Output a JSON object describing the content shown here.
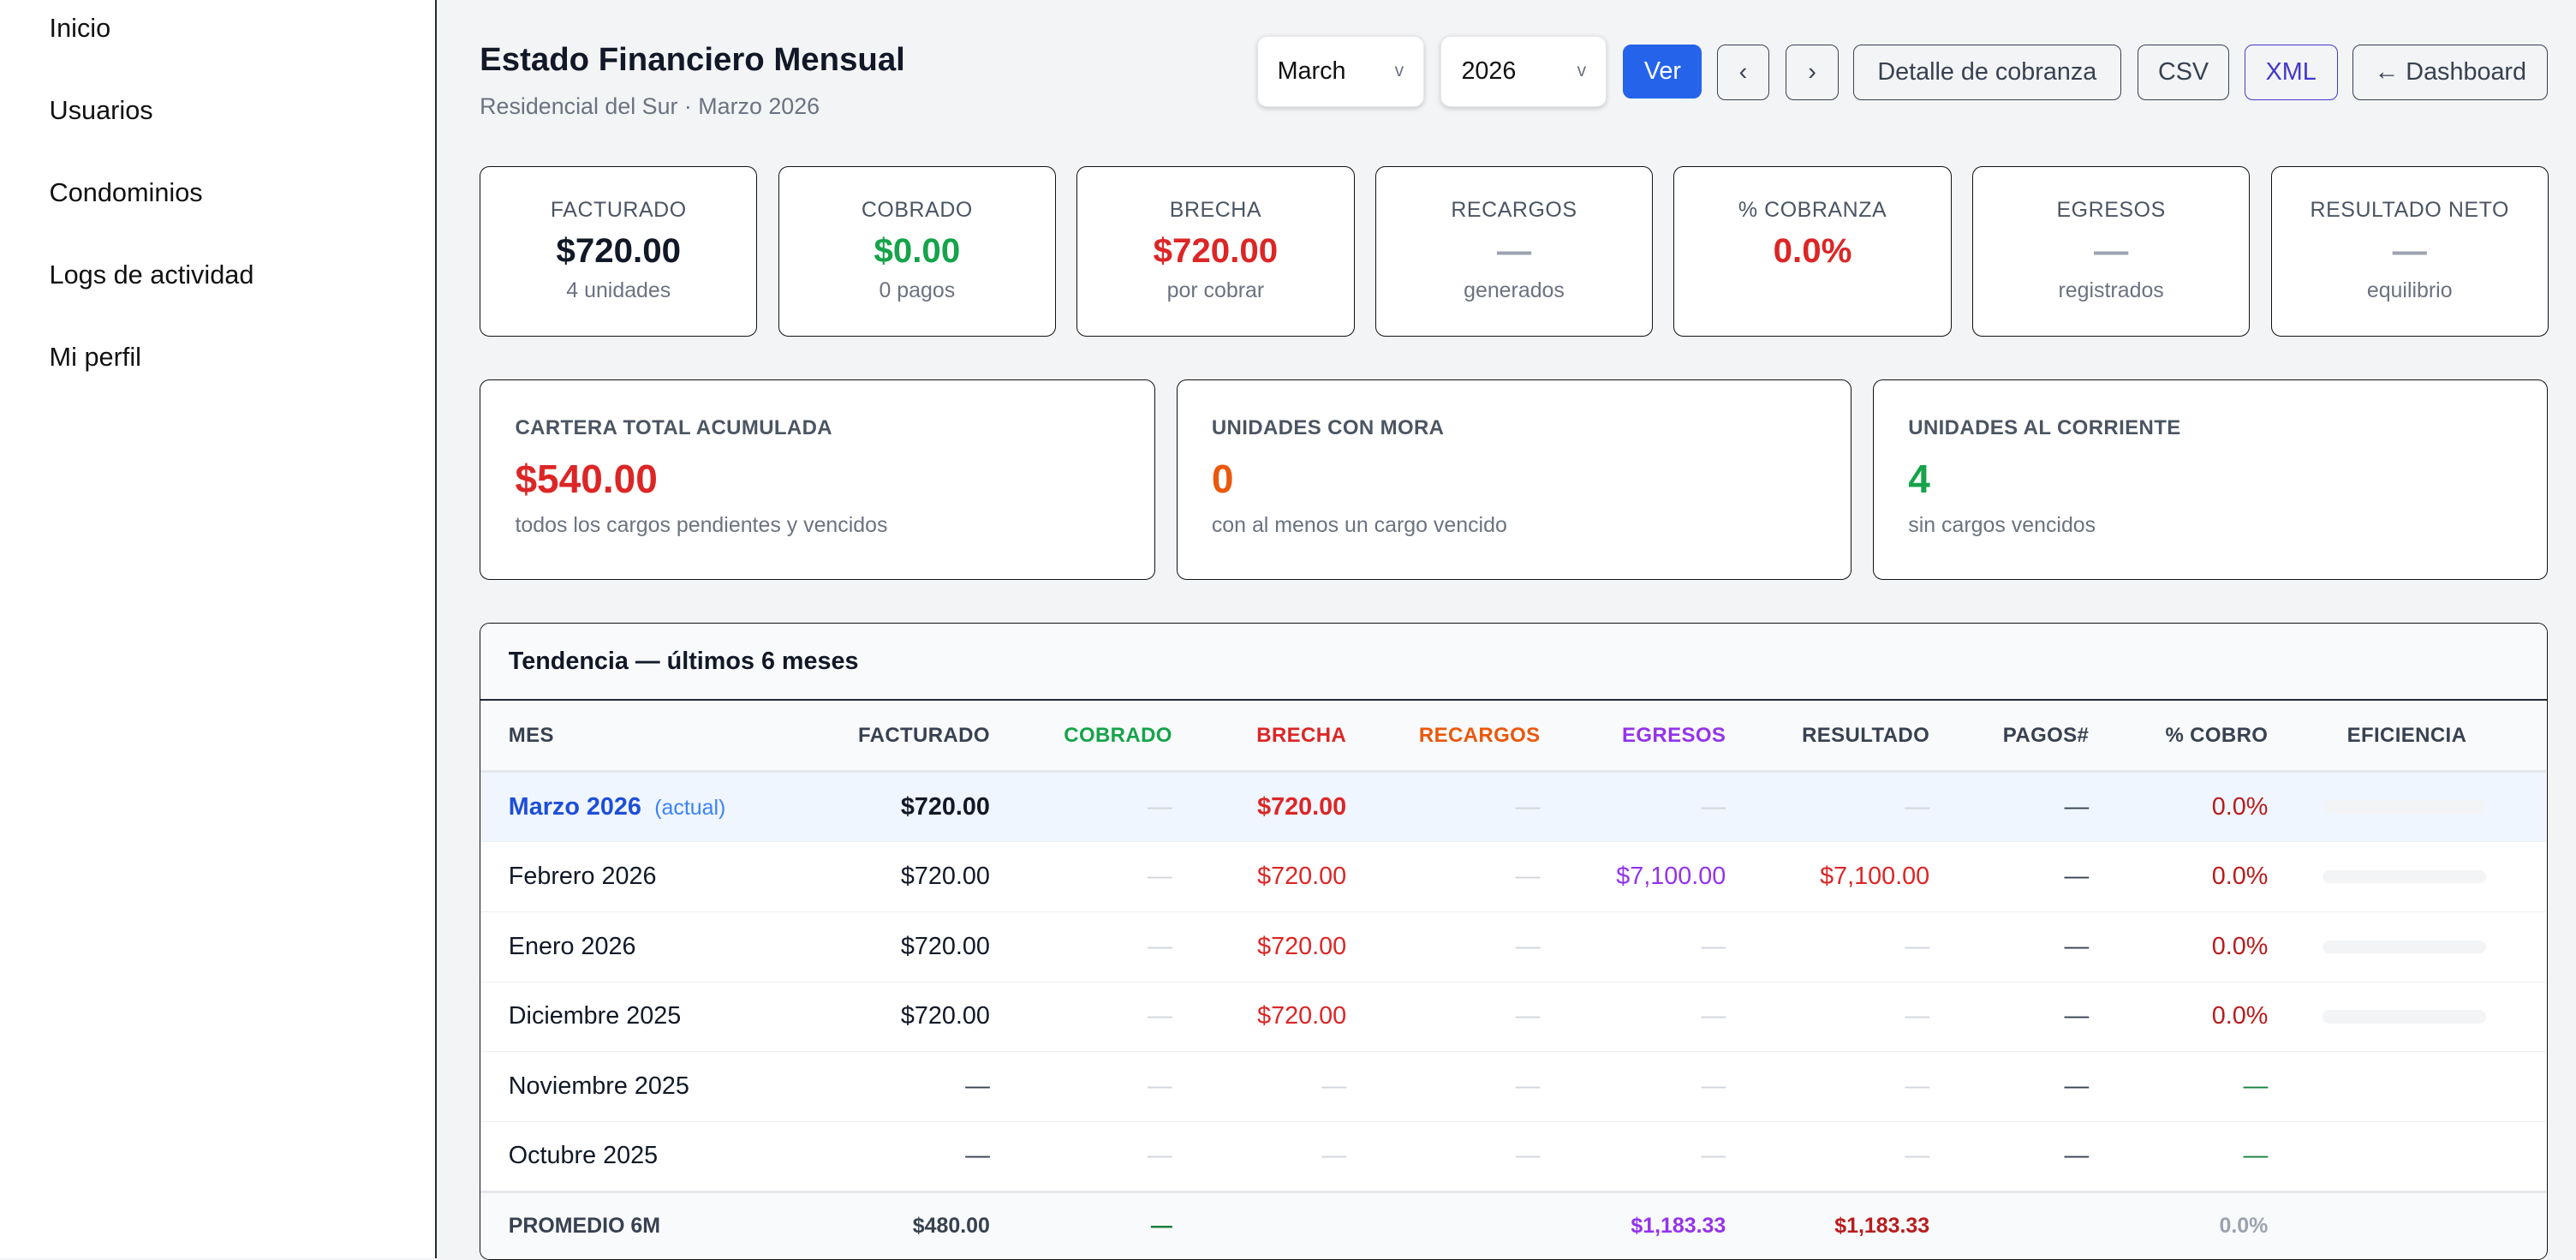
{
  "sidebar": {
    "items": [
      "Inicio",
      "Usuarios",
      "Condominios",
      "Logs de actividad",
      "Mi perfil"
    ]
  },
  "header": {
    "title": "Estado Financiero Mensual",
    "subtitle": "Residencial del Sur · Marzo 2026"
  },
  "controls": {
    "month": "March",
    "year": "2026",
    "ver": "Ver",
    "prev": "‹",
    "next": "›",
    "detalle": "Detalle de cobranza",
    "csv": "CSV",
    "xml": "XML",
    "dashboard": "← Dashboard",
    "chevron": "v"
  },
  "kpis": [
    {
      "label": "FACTURADO",
      "value": "$720.00",
      "sub": "4 unidades",
      "color": "#111827"
    },
    {
      "label": "COBRADO",
      "value": "$0.00",
      "sub": "0 pagos",
      "color": "#16a34a"
    },
    {
      "label": "BRECHA",
      "value": "$720.00",
      "sub": "por cobrar",
      "color": "#dc2626"
    },
    {
      "label": "RECARGOS",
      "value": "—",
      "sub": "generados",
      "color": "#9ca3af"
    },
    {
      "label": "% COBRANZA",
      "value": "0.0%",
      "sub": "",
      "color": "#dc2626"
    },
    {
      "label": "EGRESOS",
      "value": "—",
      "sub": "registrados",
      "color": "#9ca3af"
    },
    {
      "label": "RESULTADO NETO",
      "value": "—",
      "sub": "equilibrio",
      "color": "#9ca3af"
    }
  ],
  "summary": [
    {
      "label": "CARTERA TOTAL ACUMULADA",
      "value": "$540.00",
      "sub": "todos los cargos pendientes y vencidos",
      "color": "#dc2626"
    },
    {
      "label": "UNIDADES CON MORA",
      "value": "0",
      "sub": "con al menos un cargo vencido",
      "color": "#ea580c"
    },
    {
      "label": "UNIDADES AL CORRIENTE",
      "value": "4",
      "sub": "sin cargos vencidos",
      "color": "#16a34a"
    }
  ],
  "trend": {
    "title": "Tendencia — últimos 6 meses",
    "columns": [
      "MES",
      "FACTURADO",
      "COBRADO",
      "BRECHA",
      "RECARGOS",
      "EGRESOS",
      "RESULTADO",
      "PAGOS#",
      "% COBRO",
      "EFICIENCIA"
    ],
    "column_colors": [
      "#374151",
      "#374151",
      "#16a34a",
      "#dc2626",
      "#ea580c",
      "#9333ea",
      "#374151",
      "#374151",
      "#374151",
      "#374151"
    ],
    "current_tag": "(actual)",
    "rows": [
      [
        "Marzo 2026",
        "$720.00",
        "—",
        "$720.00",
        "—",
        "—",
        "—",
        "—",
        "0.0%"
      ],
      [
        "Febrero 2026",
        "$720.00",
        "—",
        "$720.00",
        "—",
        "$7,100.00",
        "$7,100.00",
        "—",
        "0.0%"
      ],
      [
        "Enero 2026",
        "$720.00",
        "—",
        "$720.00",
        "—",
        "—",
        "—",
        "—",
        "0.0%"
      ],
      [
        "Diciembre 2025",
        "$720.00",
        "—",
        "$720.00",
        "—",
        "—",
        "—",
        "—",
        "0.0%"
      ],
      [
        "Noviembre 2025",
        "—",
        "—",
        "—",
        "—",
        "—",
        "—",
        "—",
        "—"
      ],
      [
        "Octubre 2025",
        "—",
        "—",
        "—",
        "—",
        "—",
        "—",
        "—",
        "—"
      ]
    ],
    "efficiency": [
      0,
      0,
      0,
      0,
      null,
      null
    ],
    "footer": [
      "PROMEDIO 6M",
      "$480.00",
      "—",
      "",
      "",
      "$1,183.33",
      "$1,183.33",
      "",
      "0.0%"
    ]
  }
}
